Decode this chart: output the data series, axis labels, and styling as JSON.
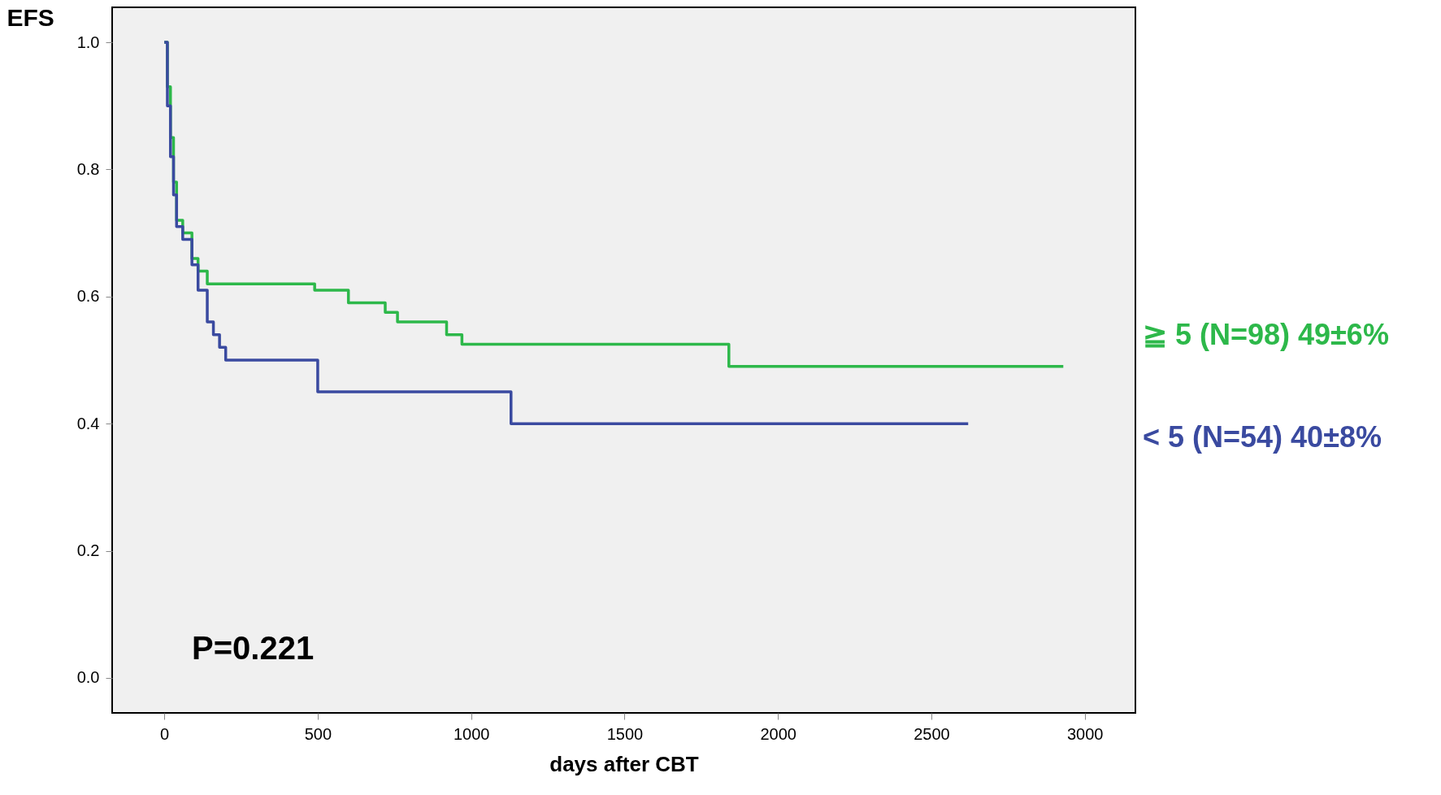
{
  "chart_data": {
    "type": "step",
    "xlabel": "days after CBT",
    "ylabel": "EFS",
    "xlim": [
      -170,
      3165
    ],
    "ylim": [
      -0.055,
      1.055
    ],
    "xticks": [
      0,
      500,
      1000,
      1500,
      2000,
      2500,
      3000
    ],
    "yticks": [
      {
        "value": 0,
        "label": "0.0"
      },
      {
        "value": 0.2,
        "label": "0.2"
      },
      {
        "value": 0.4,
        "label": "0.4"
      },
      {
        "value": 0.6,
        "label": "0.6"
      },
      {
        "value": 0.8,
        "label": "0.8"
      },
      {
        "value": 1,
        "label": "1.0"
      }
    ],
    "grid": false,
    "series": [
      {
        "name": "≧ 5  (N=98) 49±6%",
        "color": "#2db84a",
        "x": [
          0,
          10,
          20,
          30,
          40,
          60,
          90,
          110,
          140,
          490,
          600,
          720,
          760,
          920,
          970,
          1840,
          2930
        ],
        "values": [
          1.0,
          0.93,
          0.85,
          0.78,
          0.72,
          0.7,
          0.66,
          0.64,
          0.62,
          0.61,
          0.59,
          0.575,
          0.56,
          0.54,
          0.525,
          0.49,
          0.49
        ]
      },
      {
        "name": "< 5   (N=54) 40±8%",
        "color": "#3a4aa0",
        "x": [
          0,
          10,
          20,
          30,
          40,
          60,
          90,
          110,
          140,
          160,
          180,
          200,
          500,
          1130,
          2620
        ],
        "values": [
          1.0,
          0.9,
          0.82,
          0.76,
          0.71,
          0.69,
          0.65,
          0.61,
          0.56,
          0.54,
          0.52,
          0.5,
          0.45,
          0.4,
          0.4
        ]
      }
    ],
    "annotations": [
      "P=0.221"
    ]
  }
}
